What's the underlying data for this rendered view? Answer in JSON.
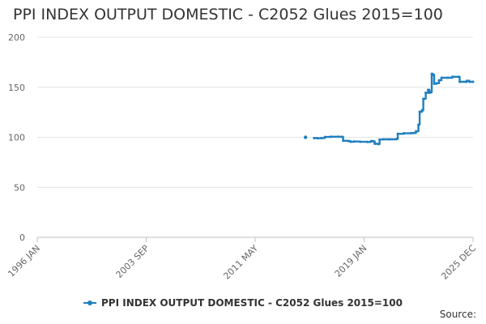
{
  "chart_data": {
    "type": "line",
    "title": "PPI INDEX OUTPUT DOMESTIC - C2052 Glues 2015=100",
    "xlabel": "",
    "ylabel": "",
    "ylim": [
      0,
      200
    ],
    "yticks": [
      0,
      50,
      100,
      150,
      200
    ],
    "xlim": [
      "1996-01",
      "2025-12"
    ],
    "xtick_labels": [
      "1996 JAN",
      "2003 SEP",
      "2011 MAY",
      "2019 JAN",
      "2025 DEC"
    ],
    "grid": "horizontal",
    "legend_position": "bottom",
    "series": [
      {
        "name": "PPI INDEX OUTPUT DOMESTIC - C2052 Glues 2015=100",
        "color": "#1f7fbf",
        "points": [
          [
            "2014-06",
            100.0
          ],
          [
            "2015-01",
            99.2
          ],
          [
            "2015-04",
            99.0
          ],
          [
            "2015-07",
            99.3
          ],
          [
            "2015-10",
            100.3
          ],
          [
            "2016-03",
            100.6
          ],
          [
            "2016-09",
            100.6
          ],
          [
            "2016-12",
            100.5
          ],
          [
            "2017-01",
            96.5
          ],
          [
            "2017-05",
            96.3
          ],
          [
            "2017-07",
            95.5
          ],
          [
            "2017-10",
            95.8
          ],
          [
            "2018-03",
            95.5
          ],
          [
            "2018-09",
            95.3
          ],
          [
            "2018-12",
            96.3
          ],
          [
            "2019-02",
            96.0
          ],
          [
            "2019-03",
            93.5
          ],
          [
            "2019-06",
            93.2
          ],
          [
            "2019-07",
            97.8
          ],
          [
            "2019-10",
            98.0
          ],
          [
            "2020-03",
            98.0
          ],
          [
            "2020-09",
            98.3
          ],
          [
            "2020-10",
            103.5
          ],
          [
            "2021-03",
            104.0
          ],
          [
            "2021-09",
            104.2
          ],
          [
            "2021-11",
            104.3
          ],
          [
            "2022-01",
            106.0
          ],
          [
            "2022-03",
            112.5
          ],
          [
            "2022-04",
            125.5
          ],
          [
            "2022-06",
            127.0
          ],
          [
            "2022-07",
            138.5
          ],
          [
            "2022-09",
            144.5
          ],
          [
            "2022-11",
            147.5
          ],
          [
            "2022-12",
            144.5
          ],
          [
            "2023-01",
            145.0
          ],
          [
            "2023-02",
            163.5
          ],
          [
            "2023-03",
            162.5
          ],
          [
            "2023-04",
            153.5
          ],
          [
            "2023-06",
            154.0
          ],
          [
            "2023-08",
            157.0
          ],
          [
            "2023-10",
            159.5
          ],
          [
            "2024-03",
            159.5
          ],
          [
            "2024-07",
            160.5
          ],
          [
            "2024-12",
            160.5
          ],
          [
            "2025-01",
            155.5
          ],
          [
            "2025-06",
            155.5
          ],
          [
            "2025-07",
            156.5
          ],
          [
            "2025-09",
            155.5
          ],
          [
            "2025-12",
            155.5
          ]
        ]
      }
    ]
  },
  "source_label": "Source:"
}
